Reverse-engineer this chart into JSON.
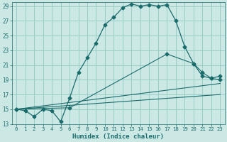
{
  "title": "",
  "xlabel": "Humidex (Indice chaleur)",
  "xlim": [
    -0.5,
    23.5
  ],
  "ylim": [
    13,
    29.5
  ],
  "yticks": [
    13,
    15,
    17,
    19,
    21,
    23,
    25,
    27,
    29
  ],
  "xticks": [
    0,
    1,
    2,
    3,
    4,
    5,
    6,
    7,
    8,
    9,
    10,
    11,
    12,
    13,
    14,
    15,
    16,
    17,
    18,
    19,
    20,
    21,
    22,
    23
  ],
  "bg_color": "#cce8e4",
  "grid_color": "#99ccc8",
  "line_color": "#1a6b6b",
  "line1_x": [
    0,
    1,
    2,
    3,
    4,
    5,
    6,
    7,
    8,
    9,
    10,
    11,
    12,
    13,
    14,
    15,
    16,
    17,
    18,
    19,
    20,
    21,
    22,
    23
  ],
  "line1_y": [
    15.0,
    14.8,
    14.0,
    15.0,
    14.8,
    13.3,
    16.5,
    20.0,
    22.0,
    24.0,
    26.5,
    27.5,
    28.8,
    29.3,
    29.0,
    29.2,
    29.0,
    29.2,
    27.0,
    23.5,
    21.2,
    19.5,
    19.2,
    19.5
  ],
  "line2_x": [
    0,
    6,
    17,
    20,
    21,
    22,
    23
  ],
  "line2_y": [
    15.0,
    15.2,
    22.5,
    21.2,
    20.0,
    19.2,
    19.0
  ],
  "line3_x": [
    0,
    23
  ],
  "line3_y": [
    15.0,
    18.5
  ],
  "line4_x": [
    0,
    23
  ],
  "line4_y": [
    15.0,
    17.0
  ],
  "marker": "D",
  "markersize": 2.5
}
